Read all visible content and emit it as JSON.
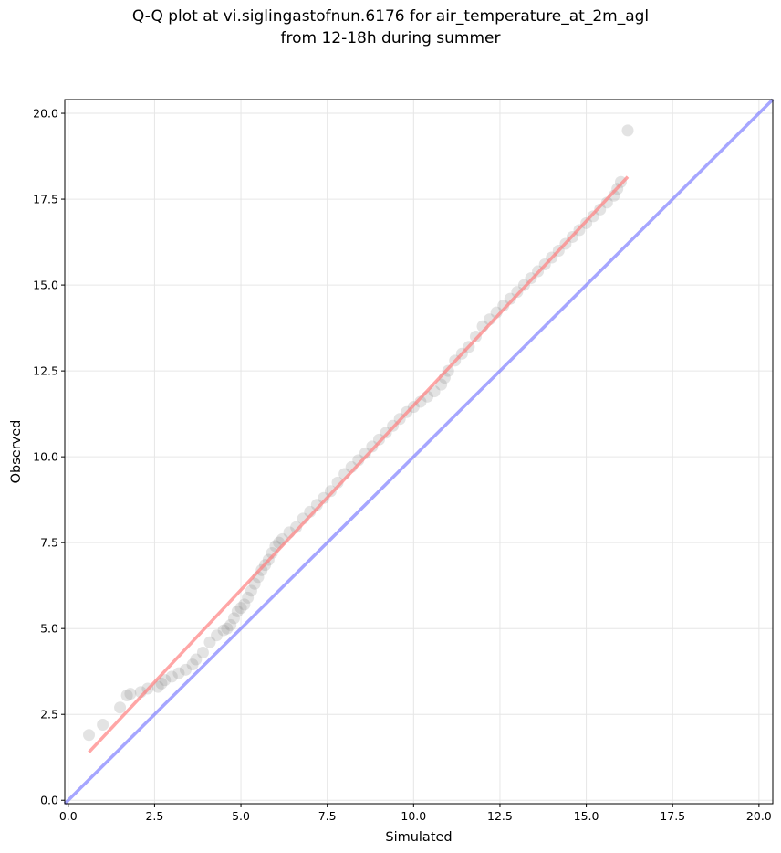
{
  "chart_data": {
    "type": "scatter",
    "title": [
      "Q-Q plot at vi.siglingastofnun.6176 for air_temperature_at_2m_agl",
      "from 12-18h during summer"
    ],
    "xlabel": "Simulated",
    "ylabel": "Observed",
    "xlim": [
      -0.1,
      20.4
    ],
    "ylim": [
      -0.1,
      20.4
    ],
    "xticks": [
      "0.0",
      "2.5",
      "5.0",
      "7.5",
      "10.0",
      "12.5",
      "15.0",
      "17.5",
      "20.0"
    ],
    "yticks": [
      "0.0",
      "2.5",
      "5.0",
      "7.5",
      "10.0",
      "12.5",
      "15.0",
      "17.5",
      "20.0"
    ],
    "grid": true,
    "series": [
      {
        "kind": "points",
        "color": "#808080",
        "x": [
          0.6,
          1.0,
          1.5,
          1.7,
          1.8,
          2.1,
          2.3,
          2.6,
          2.7,
          2.8,
          3.0,
          3.2,
          3.4,
          3.6,
          3.7,
          3.9,
          4.1,
          4.3,
          4.5,
          4.6,
          4.7,
          4.8,
          4.9,
          5.0,
          5.1,
          5.2,
          5.3,
          5.4,
          5.5,
          5.6,
          5.7,
          5.8,
          5.9,
          6.0,
          6.1,
          6.2,
          6.4,
          6.6,
          6.8,
          7.0,
          7.2,
          7.4,
          7.6,
          7.8,
          8.0,
          8.2,
          8.4,
          8.6,
          8.8,
          9.0,
          9.2,
          9.4,
          9.6,
          9.8,
          10.0,
          10.2,
          10.4,
          10.6,
          10.8,
          10.9,
          11.0,
          11.2,
          11.4,
          11.6,
          11.8,
          12.0,
          12.2,
          12.4,
          12.6,
          12.8,
          13.0,
          13.2,
          13.4,
          13.6,
          13.8,
          14.0,
          14.2,
          14.4,
          14.6,
          14.8,
          15.0,
          15.2,
          15.4,
          15.6,
          15.8,
          15.9,
          16.0,
          16.2
        ],
        "y": [
          1.9,
          2.2,
          2.7,
          3.05,
          3.1,
          3.15,
          3.25,
          3.3,
          3.4,
          3.5,
          3.6,
          3.7,
          3.8,
          3.95,
          4.1,
          4.3,
          4.6,
          4.8,
          4.95,
          5.0,
          5.1,
          5.3,
          5.5,
          5.6,
          5.7,
          5.9,
          6.1,
          6.3,
          6.5,
          6.7,
          6.85,
          7.0,
          7.2,
          7.4,
          7.5,
          7.6,
          7.8,
          7.95,
          8.2,
          8.4,
          8.6,
          8.8,
          9.0,
          9.25,
          9.5,
          9.7,
          9.9,
          10.1,
          10.3,
          10.5,
          10.7,
          10.9,
          11.1,
          11.3,
          11.45,
          11.6,
          11.75,
          11.9,
          12.1,
          12.3,
          12.5,
          12.8,
          13.0,
          13.2,
          13.5,
          13.8,
          14.0,
          14.2,
          14.4,
          14.6,
          14.8,
          15.0,
          15.2,
          15.4,
          15.6,
          15.8,
          16.0,
          16.2,
          16.4,
          16.6,
          16.8,
          17.0,
          17.2,
          17.4,
          17.6,
          17.8,
          18.0,
          19.5
        ]
      },
      {
        "kind": "line",
        "color": "#ff8080",
        "x": [
          0.6,
          16.2
        ],
        "y": [
          1.4,
          18.15
        ]
      },
      {
        "kind": "line",
        "color": "#8080ff",
        "x": [
          -0.1,
          20.4
        ],
        "y": [
          -0.1,
          20.4
        ]
      }
    ]
  }
}
